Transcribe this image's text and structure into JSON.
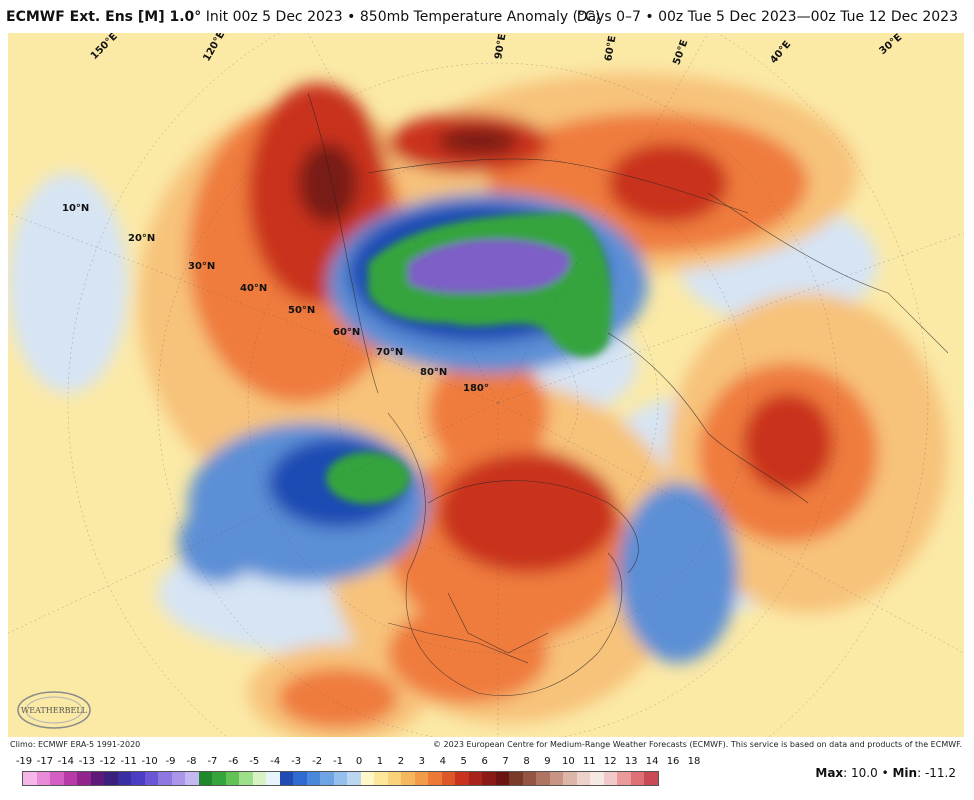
{
  "header": {
    "model": "ECMWF Ext. Ens [M] 1.0",
    "degree": "°",
    "init": "Init 00z 5 Dec 2023",
    "separator": "•",
    "field": "850mb Temperature Anomaly (°C)",
    "valid": "Days 0–7 • 00z Tue 5 Dec 2023—00z Tue 12 Dec 2023"
  },
  "map": {
    "lat_labels": [
      "10°N",
      "20°N",
      "30°N",
      "40°N",
      "50°N",
      "60°N",
      "70°N",
      "80°N"
    ],
    "lon_labels": [
      "180°",
      "150°E",
      "120°E",
      "90°E",
      "60°E",
      "50°E",
      "40°E",
      "30°E"
    ],
    "colors": {
      "ocean_base": "#fbe9a6",
      "warm_light": "#f7c27a",
      "warm_mid": "#ef7b3e",
      "warm_strong": "#c9321e",
      "warm_extreme": "#7a1a14",
      "cold_light": "#d6e4f4",
      "cold_mid": "#5b8fd6",
      "cold_strong": "#1f4bb3",
      "cold_green": "#34a43c",
      "cold_purple": "#7d5fc7"
    }
  },
  "footer": {
    "climo": "Climo: ECMWF ERA-5 1991-2020",
    "copyright": "© 2023 European Centre for Medium-Range Weather Forecasts (ECMWF). This service is based on data and products of the ECMWF."
  },
  "legend": {
    "labels": [
      "-19",
      "-17",
      "-14",
      "-13",
      "-12",
      "-11",
      "-10",
      "-9",
      "-8",
      "-7",
      "-6",
      "-5",
      "-4",
      "-3",
      "-2",
      "-1",
      "0",
      "1",
      "2",
      "3",
      "4",
      "5",
      "6",
      "7",
      "8",
      "9",
      "10",
      "11",
      "12",
      "13",
      "14",
      "16",
      "18"
    ],
    "colors": [
      "#f6b7e8",
      "#e88ad8",
      "#d35ec4",
      "#b73aa9",
      "#92248e",
      "#5e1a7a",
      "#3b1f7d",
      "#3a2ea3",
      "#4b3cc4",
      "#6b57d6",
      "#8c78e0",
      "#a996e8",
      "#c4b8f0",
      "#20882c",
      "#34a43c",
      "#62c254",
      "#9ee08a",
      "#d7f3c6",
      "#e8f4fb",
      "#1f4bb3",
      "#2f6ad0",
      "#4a88dc",
      "#6fa4e4",
      "#95bfec",
      "#bcd6f2",
      "#fff7c8",
      "#fce79a",
      "#f9d27a",
      "#f6b85e",
      "#f29c49",
      "#ec7a36",
      "#de5726",
      "#c9321e",
      "#a8231a",
      "#891a16",
      "#6b1513",
      "#7a3a2a",
      "#955544",
      "#b07462",
      "#c89584",
      "#dcb6a8",
      "#ecd2c8",
      "#f6e8e2",
      "#f2c9c9",
      "#ea9a9a",
      "#de6f74",
      "#c94a56"
    ],
    "max_label": "Max",
    "max_value": "10.0",
    "sep": "•",
    "min_label": "Min",
    "min_value": "-11.2"
  },
  "logo": {
    "text": "WEATHERBELL"
  }
}
